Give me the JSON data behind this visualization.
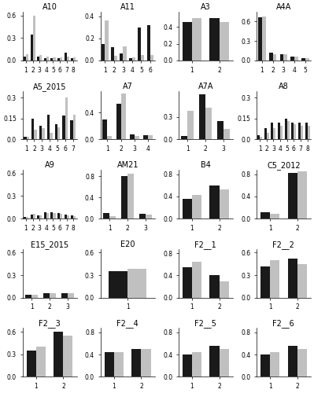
{
  "panels": [
    {
      "title": "A10",
      "xlabels": [
        "1",
        "2",
        "3",
        "4",
        "5",
        "6",
        "7",
        "8"
      ],
      "black": [
        0.05,
        0.35,
        0.05,
        0.03,
        0.03,
        0.03,
        0.1,
        0.03
      ],
      "gray": [
        0.08,
        0.6,
        0.07,
        0.05,
        0.04,
        0.04,
        0.05,
        0.04
      ],
      "ylim": [
        0,
        0.65
      ],
      "yticks": [
        0.0,
        0.3,
        0.6
      ]
    },
    {
      "title": "A11",
      "xlabels": [
        "1",
        "2",
        "3",
        "4",
        "5",
        "6"
      ],
      "black": [
        0.15,
        0.12,
        0.06,
        0.02,
        0.3,
        0.32
      ],
      "gray": [
        0.36,
        0.04,
        0.13,
        0.03,
        0.05,
        0.05
      ],
      "ylim": [
        0,
        0.44
      ],
      "yticks": [
        0.0,
        0.2,
        0.4
      ]
    },
    {
      "title": "A3",
      "xlabels": [
        "1",
        "2"
      ],
      "black": [
        0.46,
        0.5
      ],
      "gray": [
        0.5,
        0.46
      ],
      "ylim": [
        0,
        0.58
      ],
      "yticks": [
        0.0,
        0.2,
        0.4
      ]
    },
    {
      "title": "A4A",
      "xlabels": [
        "1",
        "2",
        "3",
        "4",
        "5"
      ],
      "black": [
        0.67,
        0.12,
        0.1,
        0.06,
        0.04
      ],
      "gray": [
        0.68,
        0.09,
        0.09,
        0.06,
        0.03
      ],
      "ylim": [
        0,
        0.75
      ],
      "yticks": [
        0.0,
        0.3,
        0.6
      ]
    },
    {
      "title": "A5_2015",
      "xlabels": [
        "1",
        "2",
        "3",
        "4",
        "5",
        "6",
        "7"
      ],
      "black": [
        0.02,
        0.15,
        0.1,
        0.18,
        0.11,
        0.17,
        0.14
      ],
      "gray": [
        0.02,
        0.07,
        0.08,
        0.05,
        0.09,
        0.3,
        0.18
      ],
      "ylim": [
        0,
        0.35
      ],
      "yticks": [
        0.0,
        0.15,
        0.3
      ]
    },
    {
      "title": "A7",
      "xlabels": [
        "1",
        "2",
        "3",
        "4"
      ],
      "black": [
        0.3,
        0.53,
        0.08,
        0.06
      ],
      "gray": [
        0.05,
        0.68,
        0.05,
        0.06
      ],
      "ylim": [
        0,
        0.72
      ],
      "yticks": [
        0.0,
        0.4
      ]
    },
    {
      "title": "A7A",
      "xlabels": [
        "1",
        "2",
        "3"
      ],
      "black": [
        0.05,
        0.6,
        0.25
      ],
      "gray": [
        0.38,
        0.42,
        0.14
      ],
      "ylim": [
        0,
        0.65
      ],
      "yticks": [
        0.0,
        0.3
      ]
    },
    {
      "title": "A8",
      "xlabels": [
        "1",
        "2",
        "3",
        "4",
        "5",
        "6",
        "7",
        "8"
      ],
      "black": [
        0.03,
        0.08,
        0.12,
        0.12,
        0.15,
        0.12,
        0.12,
        0.12
      ],
      "gray": [
        0.02,
        0.05,
        0.08,
        0.1,
        0.13,
        0.11,
        0.1,
        0.1
      ],
      "ylim": [
        0,
        0.35
      ],
      "yticks": [
        0.0,
        0.15,
        0.3
      ]
    },
    {
      "title": "A9",
      "xlabels": [
        "1",
        "2",
        "3",
        "4",
        "5",
        "6",
        "7",
        "8"
      ],
      "black": [
        0.02,
        0.05,
        0.04,
        0.08,
        0.08,
        0.07,
        0.05,
        0.04
      ],
      "gray": [
        0.02,
        0.06,
        0.04,
        0.07,
        0.07,
        0.06,
        0.04,
        0.03
      ],
      "ylim": [
        0,
        0.65
      ],
      "yticks": [
        0.0,
        0.3,
        0.6
      ]
    },
    {
      "title": "AM21",
      "xlabels": [
        "1",
        "2",
        "3"
      ],
      "black": [
        0.1,
        0.8,
        0.09
      ],
      "gray": [
        0.05,
        0.85,
        0.07
      ],
      "ylim": [
        0,
        0.92
      ],
      "yticks": [
        0.0,
        0.4,
        0.8
      ]
    },
    {
      "title": "B4",
      "xlabels": [
        "1",
        "2"
      ],
      "black": [
        0.35,
        0.6
      ],
      "gray": [
        0.42,
        0.52
      ],
      "ylim": [
        0,
        0.88
      ],
      "yticks": [
        0.0,
        0.4,
        0.8
      ]
    },
    {
      "title": "C5_2012",
      "xlabels": [
        "1",
        "2"
      ],
      "black": [
        0.12,
        0.82
      ],
      "gray": [
        0.08,
        0.86
      ],
      "ylim": [
        0,
        0.88
      ],
      "yticks": [
        0.0,
        0.4,
        0.8
      ]
    },
    {
      "title": "E15_2015",
      "xlabels": [
        "1",
        "2",
        "3"
      ],
      "black": [
        0.04,
        0.06,
        0.06
      ],
      "gray": [
        0.04,
        0.06,
        0.06
      ],
      "ylim": [
        0,
        0.65
      ],
      "yticks": [
        0.0,
        0.3,
        0.6
      ]
    },
    {
      "title": "E20",
      "xlabels": [
        "1"
      ],
      "black": [
        0.35
      ],
      "gray": [
        0.38
      ],
      "ylim": [
        0,
        0.65
      ],
      "yticks": [
        0.0,
        0.3,
        0.6
      ]
    },
    {
      "title": "F2__1",
      "xlabels": [
        "1",
        "2"
      ],
      "black": [
        0.55,
        0.4
      ],
      "gray": [
        0.65,
        0.3
      ],
      "ylim": [
        0,
        0.88
      ],
      "yticks": [
        0.0,
        0.4,
        0.8
      ]
    },
    {
      "title": "F2__2",
      "xlabels": [
        "1",
        "2"
      ],
      "black": [
        0.42,
        0.52
      ],
      "gray": [
        0.5,
        0.45
      ],
      "ylim": [
        0,
        0.65
      ],
      "yticks": [
        0.0,
        0.3,
        0.6
      ]
    },
    {
      "title": "F2__3",
      "xlabels": [
        "1",
        "2"
      ],
      "black": [
        0.35,
        0.6
      ],
      "gray": [
        0.4,
        0.55
      ],
      "ylim": [
        0,
        0.65
      ],
      "yticks": [
        0.0,
        0.3,
        0.6
      ]
    },
    {
      "title": "F2__4",
      "xlabels": [
        "1",
        "2"
      ],
      "black": [
        0.45,
        0.5
      ],
      "gray": [
        0.45,
        0.5
      ],
      "ylim": [
        0,
        0.88
      ],
      "yticks": [
        0.0,
        0.4,
        0.8
      ]
    },
    {
      "title": "F2__5",
      "xlabels": [
        "1",
        "2"
      ],
      "black": [
        0.4,
        0.55
      ],
      "gray": [
        0.45,
        0.5
      ],
      "ylim": [
        0,
        0.88
      ],
      "yticks": [
        0.0,
        0.4,
        0.8
      ]
    },
    {
      "title": "F2__6",
      "xlabels": [
        "1",
        "2"
      ],
      "black": [
        0.4,
        0.55
      ],
      "gray": [
        0.45,
        0.5
      ],
      "ylim": [
        0,
        0.88
      ],
      "yticks": [
        0.0,
        0.4,
        0.8
      ]
    }
  ],
  "black_color": "#1a1a1a",
  "gray_color": "#c0c0c0",
  "bar_width": 0.35,
  "title_fontsize": 7,
  "tick_fontsize": 5.5,
  "nrows": 5,
  "ncols": 4
}
